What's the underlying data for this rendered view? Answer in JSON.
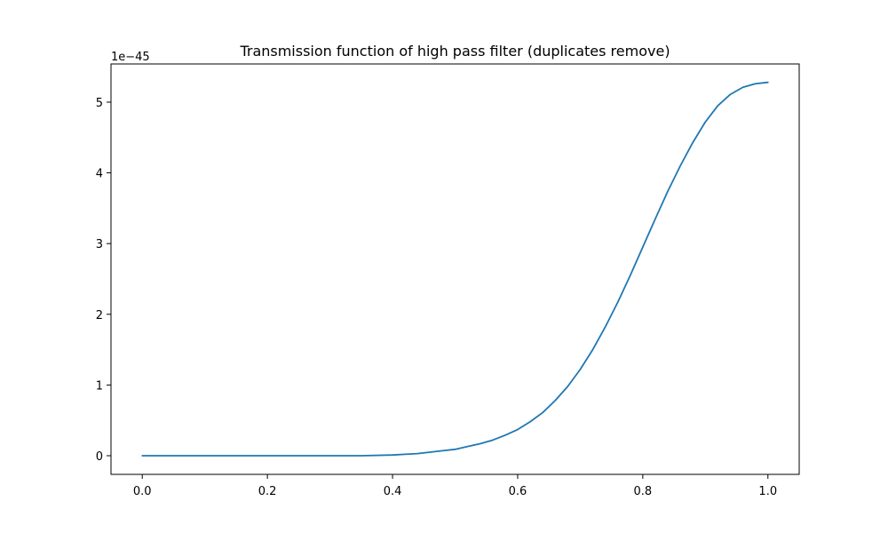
{
  "chart_data": {
    "type": "line",
    "title": "Transmission function of high pass filter (duplicates remove)",
    "xlabel": "",
    "ylabel": "",
    "offset_label": "1e−45",
    "xlim": [
      -0.05,
      1.05
    ],
    "ylim": [
      -0.264,
      5.54
    ],
    "x_ticks": [
      0.0,
      0.2,
      0.4,
      0.6,
      0.8,
      1.0
    ],
    "x_tick_labels": [
      "0.0",
      "0.2",
      "0.4",
      "0.6",
      "0.8",
      "1.0"
    ],
    "y_ticks": [
      0,
      1,
      2,
      3,
      4,
      5
    ],
    "y_tick_labels": [
      "0",
      "1",
      "2",
      "3",
      "4",
      "5"
    ],
    "grid": false,
    "line_color": "#1f77b4",
    "series": [
      {
        "x": [
          0.0,
          0.05,
          0.1,
          0.15,
          0.2,
          0.25,
          0.3,
          0.35,
          0.4,
          0.42,
          0.44,
          0.46,
          0.48,
          0.5,
          0.52,
          0.54,
          0.56,
          0.58,
          0.6,
          0.62,
          0.64,
          0.66,
          0.68,
          0.7,
          0.72,
          0.74,
          0.76,
          0.78,
          0.8,
          0.82,
          0.84,
          0.86,
          0.88,
          0.9,
          0.92,
          0.94,
          0.96,
          0.98,
          1.0
        ],
        "y": [
          0,
          0,
          0,
          0,
          0,
          0,
          0,
          0,
          0.01,
          0.02,
          0.03,
          0.05,
          0.07,
          0.09,
          0.13,
          0.17,
          0.22,
          0.29,
          0.37,
          0.48,
          0.61,
          0.78,
          0.98,
          1.22,
          1.5,
          1.82,
          2.17,
          2.55,
          2.95,
          3.35,
          3.74,
          4.1,
          4.43,
          4.72,
          4.95,
          5.11,
          5.21,
          5.26,
          5.28
        ]
      }
    ]
  }
}
